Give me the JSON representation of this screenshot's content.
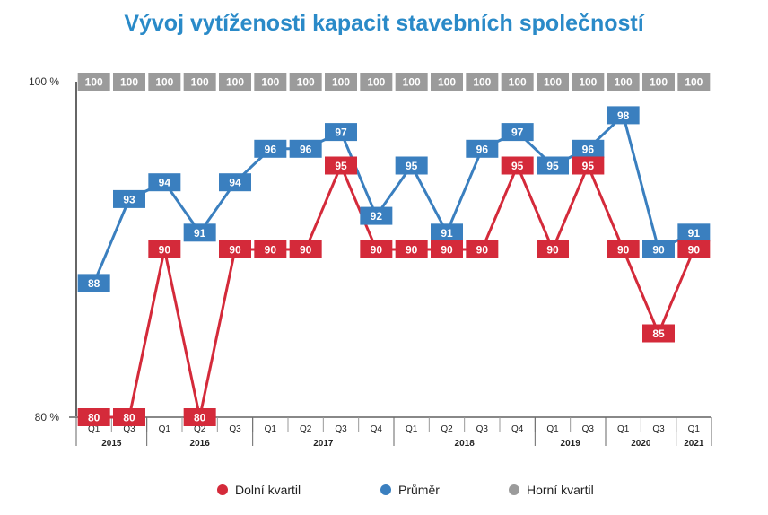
{
  "chart_data": {
    "type": "line",
    "title": "Vývoj vytíženosti kapacit stavebních společností",
    "quarters": [
      "Q1",
      "Q3",
      "Q1",
      "Q2",
      "Q3",
      "Q1",
      "Q2",
      "Q3",
      "Q4",
      "Q1",
      "Q2",
      "Q3",
      "Q4",
      "Q1",
      "Q3",
      "Q1",
      "Q3",
      "Q1"
    ],
    "years": [
      {
        "label": "2015",
        "count": 2
      },
      {
        "label": "2016",
        "count": 3
      },
      {
        "label": "2017",
        "count": 4
      },
      {
        "label": "2018",
        "count": 4
      },
      {
        "label": "2019",
        "count": 2
      },
      {
        "label": "2020",
        "count": 2
      },
      {
        "label": "2021",
        "count": 1
      }
    ],
    "ylim": [
      80,
      100
    ],
    "ytick_labels": [
      "80 %",
      "100 %"
    ],
    "series": [
      {
        "name": "Horní kvartil",
        "color": "#9b9b9b",
        "line": false,
        "values": [
          100,
          100,
          100,
          100,
          100,
          100,
          100,
          100,
          100,
          100,
          100,
          100,
          100,
          100,
          100,
          100,
          100,
          100
        ]
      },
      {
        "name": "Průměr",
        "color": "#3a7fbf",
        "line": true,
        "values": [
          88,
          93,
          94,
          91,
          94,
          96,
          96,
          97,
          92,
          95,
          91,
          96,
          97,
          95,
          96,
          98,
          90,
          91
        ]
      },
      {
        "name": "Dolní kvartil",
        "color": "#d42a3a",
        "line": true,
        "values": [
          80,
          80,
          90,
          80,
          90,
          90,
          90,
          95,
          90,
          90,
          90,
          90,
          95,
          90,
          95,
          90,
          85,
          90
        ]
      }
    ],
    "legend": [
      {
        "name": "Dolní kvartil",
        "color": "#d42a3a"
      },
      {
        "name": "Průměr",
        "color": "#3a7fbf"
      },
      {
        "name": "Horní kvartil",
        "color": "#9b9b9b"
      }
    ],
    "legend_position": "bottom"
  }
}
